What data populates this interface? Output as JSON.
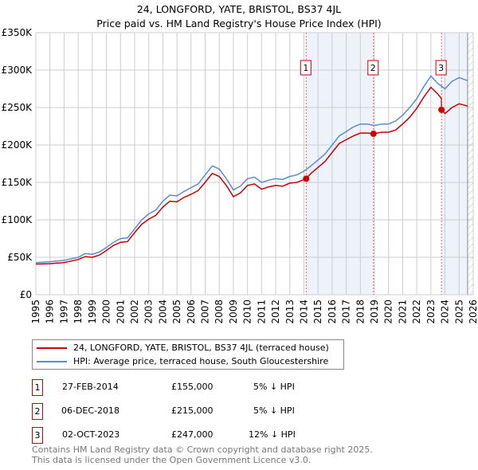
{
  "title": "24, LONGFORD, YATE, BRISTOL, BS37 4JL",
  "subtitle": "Price paid vs. HM Land Registry's House Price Index (HPI)",
  "chart_data": {
    "type": "line",
    "xlim": [
      1995,
      2026
    ],
    "ylim": [
      0,
      350000
    ],
    "x_ticks": [
      "1995",
      "1996",
      "1997",
      "1998",
      "1999",
      "2000",
      "2001",
      "2002",
      "2003",
      "2004",
      "2005",
      "2006",
      "2007",
      "2008",
      "2009",
      "2010",
      "2011",
      "2012",
      "2013",
      "2014",
      "2015",
      "2016",
      "2017",
      "2018",
      "2019",
      "2020",
      "2021",
      "2022",
      "2023",
      "2024",
      "2025",
      "2026"
    ],
    "y_ticks": [
      {
        "v": 0,
        "label": "£0"
      },
      {
        "v": 50000,
        "label": "£50K"
      },
      {
        "v": 100000,
        "label": "£100K"
      },
      {
        "v": 150000,
        "label": "£150K"
      },
      {
        "v": 200000,
        "label": "£200K"
      },
      {
        "v": 250000,
        "label": "£250K"
      },
      {
        "v": 300000,
        "label": "£300K"
      },
      {
        "v": 350000,
        "label": "£350K"
      }
    ],
    "data_end": 2025.6,
    "series": [
      {
        "name": "24, LONGFORD, YATE, BRISTOL, BS37 4JL (terraced house)",
        "color": "#cc0000",
        "x": [
          1995,
          1996,
          1997,
          1998,
          1998.5,
          1999,
          1999.5,
          2000,
          2000.5,
          2001,
          2001.5,
          2002,
          2002.5,
          2003,
          2003.5,
          2004,
          2004.5,
          2005,
          2005.5,
          2006,
          2006.5,
          2007,
          2007.5,
          2008,
          2008.5,
          2009,
          2009.5,
          2010,
          2010.5,
          2011,
          2011.5,
          2012,
          2012.5,
          2013,
          2013.5,
          2014.16,
          2014.5,
          2015,
          2015.5,
          2016,
          2016.5,
          2017,
          2017.5,
          2018,
          2018.5,
          2018.93,
          2019.5,
          2020,
          2020.5,
          2021,
          2021.5,
          2022,
          2022.5,
          2023,
          2023.5,
          2023.74,
          2023.75,
          2024,
          2024.5,
          2025,
          2025.6
        ],
        "y": [
          41000,
          41500,
          43000,
          47000,
          51000,
          50000,
          53000,
          59000,
          66000,
          70000,
          71000,
          83000,
          94000,
          101000,
          106000,
          117000,
          125000,
          124000,
          130000,
          134000,
          139000,
          150000,
          162000,
          158000,
          146000,
          131000,
          136000,
          146000,
          148000,
          141000,
          144000,
          146000,
          145000,
          149000,
          150000,
          155000,
          162000,
          170000,
          178000,
          190000,
          202000,
          207000,
          212000,
          216000,
          216000,
          215000,
          217000,
          217000,
          220000,
          228000,
          237000,
          249000,
          264000,
          277000,
          268000,
          262000,
          247000,
          242000,
          250000,
          255000,
          252000
        ]
      },
      {
        "name": "HPI: Average price, terraced house, South Gloucestershire",
        "color": "#5b8bd0",
        "x": [
          1995,
          1996,
          1997,
          1998,
          1998.5,
          1999,
          1999.5,
          2000,
          2000.5,
          2001,
          2001.5,
          2002,
          2002.5,
          2003,
          2003.5,
          2004,
          2004.5,
          2005,
          2005.5,
          2006,
          2006.5,
          2007,
          2007.5,
          2008,
          2008.5,
          2009,
          2009.5,
          2010,
          2010.5,
          2011,
          2011.5,
          2012,
          2012.5,
          2013,
          2013.5,
          2014,
          2014.5,
          2015,
          2015.5,
          2016,
          2016.5,
          2017,
          2017.5,
          2018,
          2018.5,
          2019,
          2019.5,
          2020,
          2020.5,
          2021,
          2021.5,
          2022,
          2022.5,
          2023,
          2023.5,
          2024,
          2024.5,
          2025,
          2025.6
        ],
        "y": [
          43000,
          44000,
          46000,
          50000,
          55000,
          54000,
          57000,
          63000,
          70000,
          75000,
          76000,
          88000,
          100000,
          108000,
          113000,
          125000,
          133000,
          132000,
          138000,
          143000,
          148000,
          160000,
          172000,
          168000,
          155000,
          140000,
          145000,
          155000,
          157000,
          150000,
          153000,
          155000,
          154000,
          158000,
          160000,
          165000,
          172000,
          180000,
          188000,
          200000,
          212000,
          218000,
          224000,
          228000,
          228000,
          226000,
          228000,
          228000,
          232000,
          240000,
          250000,
          262000,
          278000,
          292000,
          282000,
          275000,
          285000,
          290000,
          286000
        ]
      }
    ],
    "sales": [
      {
        "n": "1",
        "x": 2014.16,
        "price": 155000
      },
      {
        "n": "2",
        "x": 2018.93,
        "price": 215000
      },
      {
        "n": "3",
        "x": 2023.75,
        "price": 247000
      }
    ]
  },
  "legend": {
    "red": "24, LONGFORD, YATE, BRISTOL, BS37 4JL (terraced house)",
    "blue": "HPI: Average price, terraced house, South Gloucestershire"
  },
  "table": [
    {
      "n": "1",
      "date": "27-FEB-2014",
      "price": "£155,000",
      "hpi": "5% ↓ HPI"
    },
    {
      "n": "2",
      "date": "06-DEC-2018",
      "price": "£215,000",
      "hpi": "5% ↓ HPI"
    },
    {
      "n": "3",
      "date": "02-OCT-2023",
      "price": "£247,000",
      "hpi": "12% ↓ HPI"
    }
  ],
  "footer": [
    "Contains HM Land Registry data © Crown copyright and database right 2025.",
    "This data is licensed under the Open Government Licence v3.0."
  ]
}
